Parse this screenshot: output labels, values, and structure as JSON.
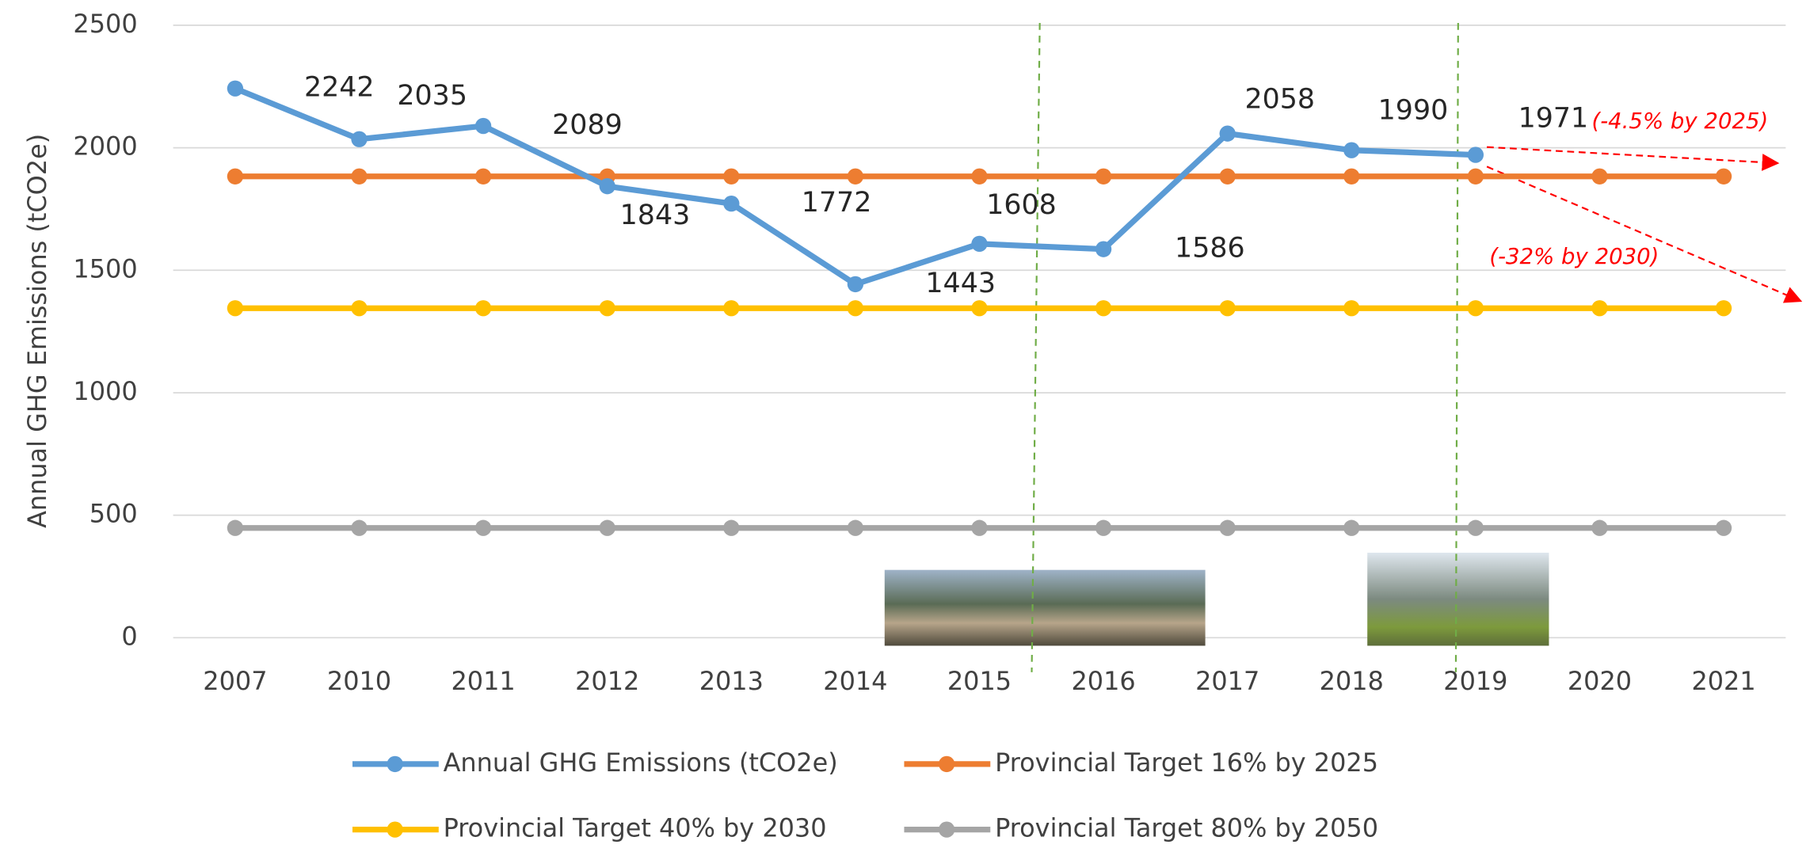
{
  "chart_data": {
    "type": "line",
    "y_label": "Annual GHG Emissions (tCO2e)",
    "categories": [
      "2007",
      "2010",
      "2011",
      "2012",
      "2013",
      "2014",
      "2015",
      "2016",
      "2017",
      "2018",
      "2019",
      "2020",
      "2021"
    ],
    "series": [
      {
        "name": "Annual GHG Emissions (tCO2e)",
        "color": "#5b9bd5",
        "values": [
          2242,
          2035,
          2089,
          1843,
          1772,
          1443,
          1608,
          1586,
          2058,
          1990,
          1971,
          null,
          null
        ],
        "data_labels": true
      },
      {
        "name": "Provincial Target 16% by 2025",
        "color": "#ed7d31",
        "values": [
          1883,
          1883,
          1883,
          1883,
          1883,
          1883,
          1883,
          1883,
          1883,
          1883,
          1883,
          1883,
          1883
        ]
      },
      {
        "name": "Provincial Target 40% by 2030",
        "color": "#ffc000",
        "values": [
          1345,
          1345,
          1345,
          1345,
          1345,
          1345,
          1345,
          1345,
          1345,
          1345,
          1345,
          1345,
          1345
        ]
      },
      {
        "name": "Provincial Target 80% by 2050",
        "color": "#a5a5a5",
        "values": [
          448,
          448,
          448,
          448,
          448,
          448,
          448,
          448,
          448,
          448,
          448,
          448,
          448
        ]
      }
    ],
    "ylim": [
      0,
      2500
    ],
    "yticks": [
      0,
      500,
      1000,
      1500,
      2000,
      2500
    ],
    "grid": true,
    "legend": "bottom",
    "annotations": [
      "(-4.5% by 2025)",
      "(-32% by 2030)"
    ]
  }
}
